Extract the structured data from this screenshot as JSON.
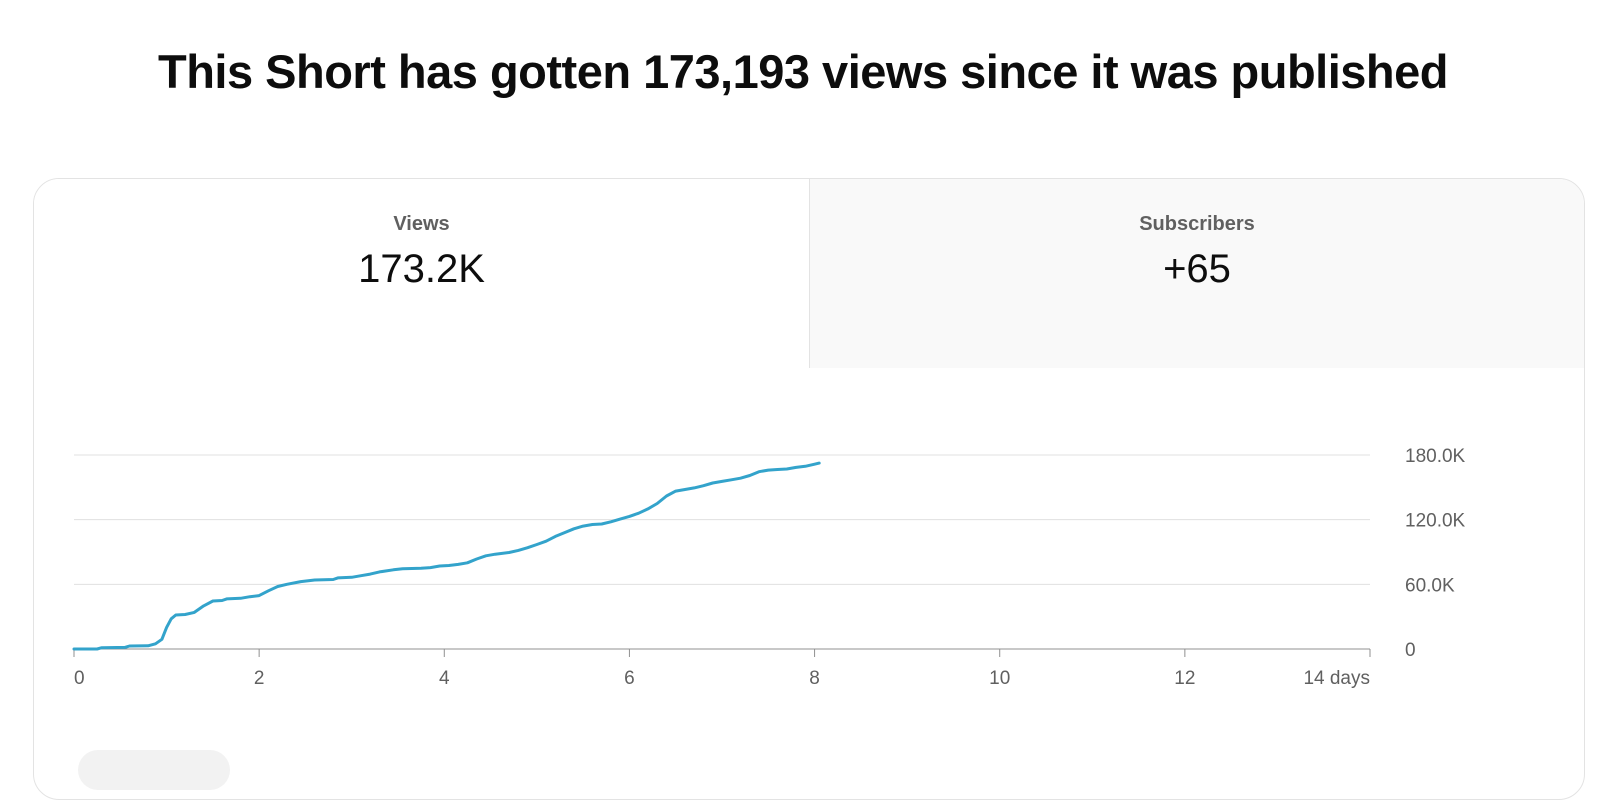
{
  "page": {
    "title": "This Short has gotten 173,193 views since it was published"
  },
  "tabs": [
    {
      "label": "Views",
      "value": "173.2K"
    },
    {
      "label": "Subscribers",
      "value": "+65"
    }
  ],
  "colors": {
    "line": "#33a3cb",
    "grid": "#e0e0e0",
    "axis": "#909090"
  },
  "chart_data": {
    "type": "line",
    "title": "",
    "xlabel": "",
    "ylabel": "",
    "xlim": [
      0,
      14
    ],
    "ylim": [
      0,
      180000
    ],
    "grid": true,
    "y_axis_side": "right",
    "x_ticks": [
      {
        "value": 0,
        "label": "0"
      },
      {
        "value": 2,
        "label": "2"
      },
      {
        "value": 4,
        "label": "4"
      },
      {
        "value": 6,
        "label": "6"
      },
      {
        "value": 8,
        "label": "8"
      },
      {
        "value": 10,
        "label": "10"
      },
      {
        "value": 12,
        "label": "12"
      },
      {
        "value": 14,
        "label": "14 days"
      }
    ],
    "y_ticks": [
      {
        "value": 0,
        "label": "0"
      },
      {
        "value": 60000,
        "label": "60.0K"
      },
      {
        "value": 120000,
        "label": "120.0K"
      },
      {
        "value": 180000,
        "label": "180.0K"
      }
    ],
    "series": [
      {
        "values": [
          [
            0,
            0
          ],
          [
            0.25,
            0
          ],
          [
            0.3,
            1200
          ],
          [
            0.55,
            1500
          ],
          [
            0.6,
            2800
          ],
          [
            0.8,
            3000
          ],
          [
            0.88,
            4800
          ],
          [
            0.95,
            9000
          ],
          [
            1.0,
            20000
          ],
          [
            1.05,
            28000
          ],
          [
            1.1,
            31500
          ],
          [
            1.2,
            32000
          ],
          [
            1.3,
            34000
          ],
          [
            1.4,
            40000
          ],
          [
            1.5,
            44500
          ],
          [
            1.6,
            45000
          ],
          [
            1.65,
            46500
          ],
          [
            1.8,
            47000
          ],
          [
            1.9,
            48500
          ],
          [
            2.0,
            49500
          ],
          [
            2.1,
            54000
          ],
          [
            2.2,
            58000
          ],
          [
            2.3,
            60000
          ],
          [
            2.45,
            62500
          ],
          [
            2.6,
            64000
          ],
          [
            2.8,
            64500
          ],
          [
            2.85,
            66000
          ],
          [
            3.0,
            66500
          ],
          [
            3.1,
            68000
          ],
          [
            3.2,
            69500
          ],
          [
            3.3,
            71500
          ],
          [
            3.45,
            73500
          ],
          [
            3.55,
            74500
          ],
          [
            3.75,
            75000
          ],
          [
            3.85,
            75500
          ],
          [
            3.95,
            77000
          ],
          [
            4.05,
            77500
          ],
          [
            4.15,
            78500
          ],
          [
            4.25,
            80000
          ],
          [
            4.35,
            83500
          ],
          [
            4.45,
            86500
          ],
          [
            4.55,
            88000
          ],
          [
            4.7,
            89500
          ],
          [
            4.8,
            91500
          ],
          [
            4.9,
            94000
          ],
          [
            5.0,
            97000
          ],
          [
            5.1,
            100000
          ],
          [
            5.2,
            104500
          ],
          [
            5.3,
            108000
          ],
          [
            5.4,
            111500
          ],
          [
            5.5,
            114000
          ],
          [
            5.6,
            115500
          ],
          [
            5.7,
            116000
          ],
          [
            5.8,
            118000
          ],
          [
            5.9,
            120500
          ],
          [
            6.0,
            123000
          ],
          [
            6.1,
            126000
          ],
          [
            6.2,
            130000
          ],
          [
            6.3,
            135000
          ],
          [
            6.4,
            142000
          ],
          [
            6.5,
            146500
          ],
          [
            6.6,
            148000
          ],
          [
            6.7,
            149500
          ],
          [
            6.8,
            151500
          ],
          [
            6.9,
            154000
          ],
          [
            7.0,
            155500
          ],
          [
            7.1,
            157000
          ],
          [
            7.2,
            158500
          ],
          [
            7.3,
            161000
          ],
          [
            7.4,
            164500
          ],
          [
            7.5,
            166000
          ],
          [
            7.6,
            166500
          ],
          [
            7.7,
            167000
          ],
          [
            7.8,
            168500
          ],
          [
            7.9,
            169500
          ],
          [
            8.0,
            171500
          ],
          [
            8.05,
            172500
          ]
        ]
      }
    ]
  }
}
